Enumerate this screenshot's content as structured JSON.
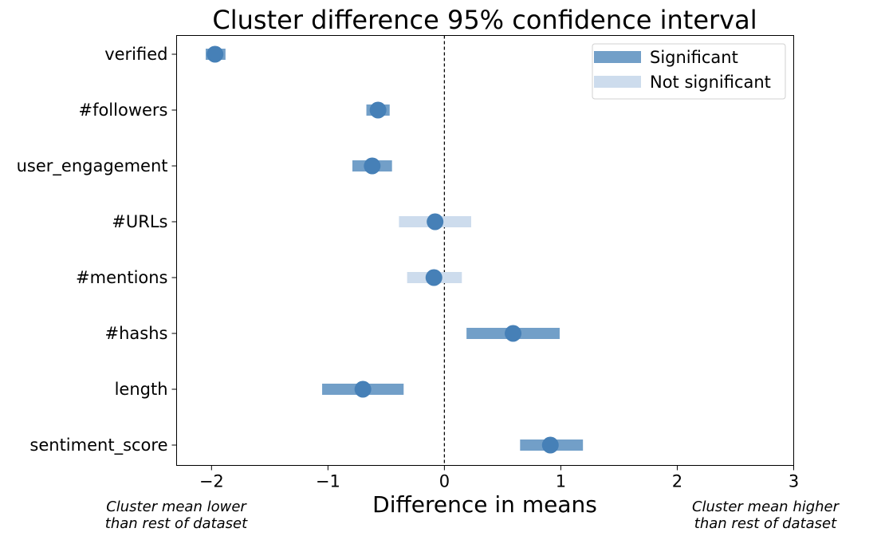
{
  "chart_data": {
    "type": "scatter",
    "title": "Cluster difference 95% confidence interval",
    "xlabel": "Difference in means",
    "ylabel": "",
    "xlim": [
      -2.3,
      3
    ],
    "xticks": [
      -2,
      -1,
      0,
      1,
      2,
      3
    ],
    "xtick_labels": [
      "−2",
      "−1",
      "0",
      "1",
      "2",
      "3"
    ],
    "categories": [
      "verified",
      "#followers",
      "user_engagement",
      "#URLs",
      "#mentions",
      "#hashs",
      "length",
      "sentiment_score"
    ],
    "means": [
      -1.97,
      -0.57,
      -0.62,
      -0.08,
      -0.09,
      0.59,
      -0.7,
      0.91
    ],
    "ci_low": [
      -2.05,
      -0.67,
      -0.79,
      -0.39,
      -0.32,
      0.19,
      -1.05,
      0.65
    ],
    "ci_high": [
      -1.88,
      -0.47,
      -0.45,
      0.23,
      0.15,
      0.99,
      -0.35,
      1.19
    ],
    "significant": [
      true,
      true,
      true,
      false,
      false,
      true,
      true,
      true
    ],
    "reference_line": 0,
    "legend": {
      "placement": "top-right",
      "entries": [
        {
          "label": "Significant",
          "color": "#729fc8"
        },
        {
          "label": "Not significant",
          "color": "#cddced"
        }
      ]
    },
    "point_color": "#4680b7",
    "grid": false
  },
  "annotations": {
    "left": [
      "Cluster mean lower",
      "than rest of dataset"
    ],
    "right": [
      "Cluster mean higher",
      "than rest of dataset"
    ]
  }
}
